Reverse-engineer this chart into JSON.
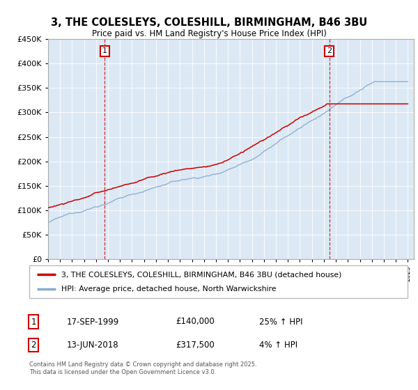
{
  "title": "3, THE COLESLEYS, COLESHILL, BIRMINGHAM, B46 3BU",
  "subtitle": "Price paid vs. HM Land Registry's House Price Index (HPI)",
  "legend_line1": "3, THE COLESLEYS, COLESHILL, BIRMINGHAM, B46 3BU (detached house)",
  "legend_line2": "HPI: Average price, detached house, North Warwickshire",
  "sale1_date": "17-SEP-1999",
  "sale1_price": 140000,
  "sale1_label": "25% ↑ HPI",
  "sale2_date": "13-JUN-2018",
  "sale2_price": 317500,
  "sale2_label": "4% ↑ HPI",
  "annotation_text": "Contains HM Land Registry data © Crown copyright and database right 2025.\nThis data is licensed under the Open Government Licence v3.0.",
  "red_color": "#cc0000",
  "blue_color": "#88aacc",
  "plot_bg_color": "#dce9f5",
  "ylim": [
    0,
    450000
  ],
  "sale1_x": 1999.72,
  "sale2_x": 2018.45,
  "xmin": 1995,
  "xmax": 2025
}
